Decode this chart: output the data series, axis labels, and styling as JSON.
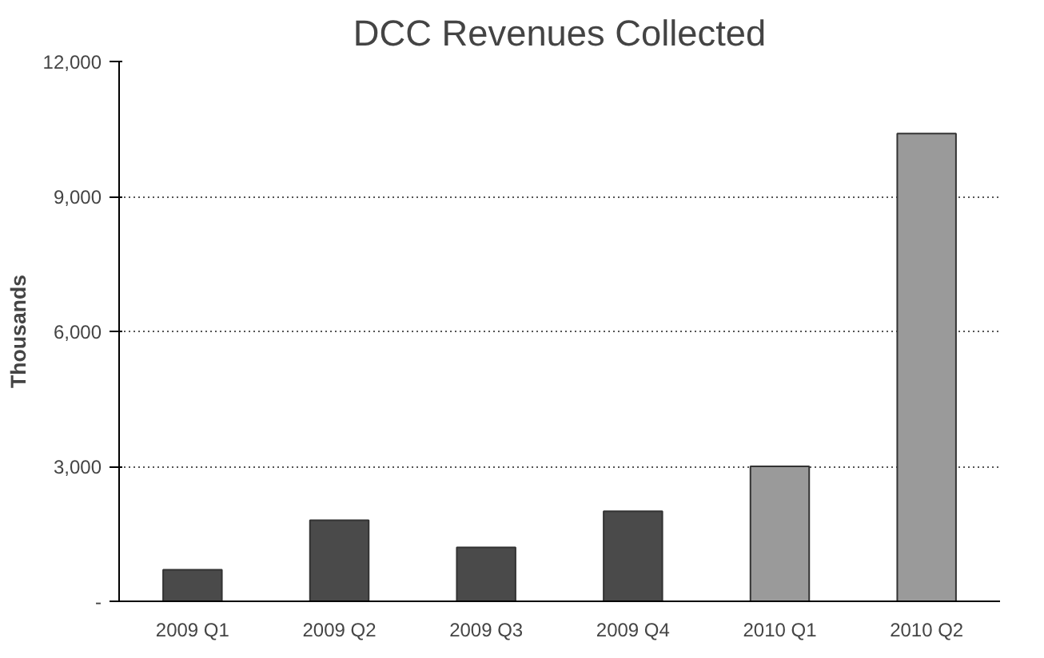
{
  "chart_data": {
    "type": "bar",
    "title": "DCC Revenues Collected",
    "ylabel": "Thousands",
    "categories": [
      "2009 Q1",
      "2009 Q2",
      "2009 Q3",
      "2009 Q4",
      "2010 Q1",
      "2010 Q2"
    ],
    "values": [
      700,
      1800,
      1200,
      2000,
      3000,
      10400
    ],
    "colors": [
      "#4a4a4a",
      "#4a4a4a",
      "#4a4a4a",
      "#4a4a4a",
      "#9a9a9a",
      "#9a9a9a"
    ],
    "ylim": [
      0,
      12000
    ],
    "yticks": [
      {
        "value": 0,
        "label": "-"
      },
      {
        "value": 3000,
        "label": "3,000"
      },
      {
        "value": 6000,
        "label": "6,000"
      },
      {
        "value": 9000,
        "label": "9,000"
      },
      {
        "value": 12000,
        "label": "12,000"
      }
    ],
    "grid": "y"
  }
}
